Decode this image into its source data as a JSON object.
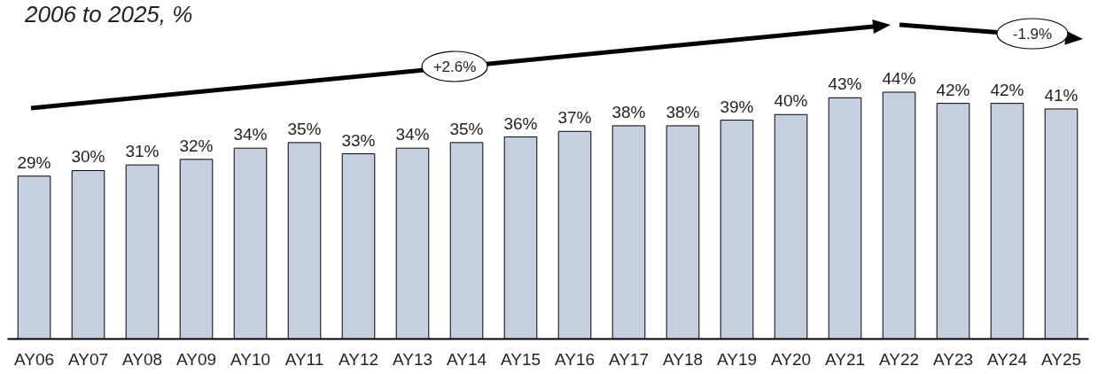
{
  "chart_data": {
    "type": "bar",
    "title": "2006 to 2025, %",
    "categories": [
      "AY06",
      "AY07",
      "AY08",
      "AY09",
      "AY10",
      "AY11",
      "AY12",
      "AY13",
      "AY14",
      "AY15",
      "AY16",
      "AY17",
      "AY18",
      "AY19",
      "AY20",
      "AY21",
      "AY22",
      "AY23",
      "AY24",
      "AY25"
    ],
    "values": [
      29,
      30,
      31,
      32,
      34,
      35,
      33,
      34,
      35,
      36,
      37,
      38,
      38,
      39,
      40,
      43,
      44,
      42,
      42,
      41
    ],
    "value_labels": [
      "29%",
      "30%",
      "31%",
      "32%",
      "34%",
      "35%",
      "33%",
      "34%",
      "35%",
      "36%",
      "37%",
      "38%",
      "38%",
      "39%",
      "40%",
      "43%",
      "44%",
      "42%",
      "42%",
      "41%"
    ],
    "color": "#c5cfe0",
    "annotations": [
      "+2.6%",
      "-1.9%"
    ]
  }
}
